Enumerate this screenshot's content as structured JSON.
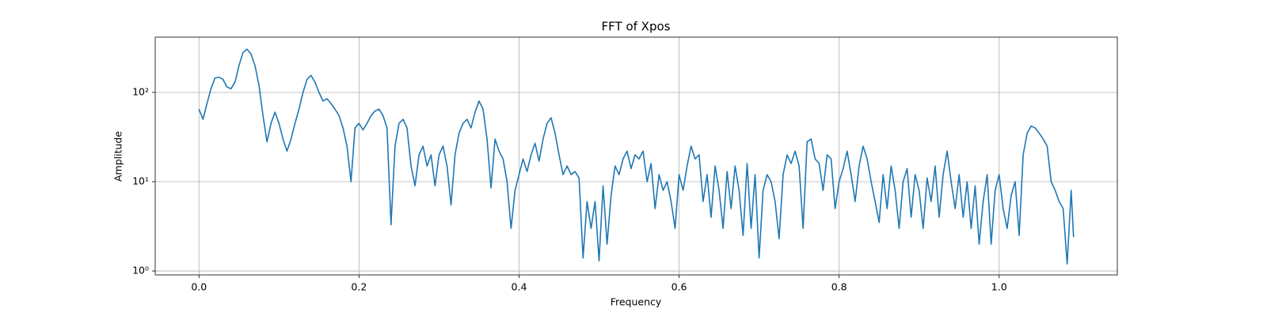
{
  "chart_data": {
    "type": "line",
    "title": "FFT of Xpos",
    "x_label": "Frequency",
    "y_label": "Amplitude",
    "yscale": "log",
    "grid": true,
    "xlim": [
      -0.0547,
      1.1477
    ],
    "ylim": [
      0.904,
      416
    ],
    "xticks": [
      {
        "value": 0,
        "label": "0.0"
      },
      0.2,
      0.4,
      0.6,
      0.8,
      {
        "value": 1,
        "label": "1.0"
      }
    ],
    "yticks": [
      {
        "value": 1,
        "label": "10⁰"
      },
      {
        "value": 10,
        "label": "10¹"
      },
      {
        "value": 100,
        "label": "10²"
      }
    ],
    "x": [
      0,
      0.005,
      0.01,
      0.015,
      0.02,
      0.025,
      0.03,
      0.035,
      0.04,
      0.045,
      0.05,
      0.055,
      0.06,
      0.065,
      0.07,
      0.075,
      0.08,
      0.085,
      0.09,
      0.095,
      0.1,
      0.105,
      0.11,
      0.115,
      0.12,
      0.125,
      0.13,
      0.135,
      0.14,
      0.145,
      0.15,
      0.155,
      0.16,
      0.165,
      0.17,
      0.175,
      0.18,
      0.185,
      0.19,
      0.195,
      0.2,
      0.205,
      0.21,
      0.215,
      0.22,
      0.225,
      0.23,
      0.235,
      0.24,
      0.245,
      0.25,
      0.255,
      0.26,
      0.265,
      0.27,
      0.275,
      0.28,
      0.285,
      0.29,
      0.295,
      0.3,
      0.305,
      0.31,
      0.315,
      0.32,
      0.325,
      0.33,
      0.335,
      0.34,
      0.345,
      0.35,
      0.355,
      0.36,
      0.365,
      0.37,
      0.375,
      0.38,
      0.385,
      0.39,
      0.395,
      0.4,
      0.405,
      0.41,
      0.415,
      0.42,
      0.425,
      0.43,
      0.435,
      0.44,
      0.445,
      0.45,
      0.455,
      0.46,
      0.465,
      0.47,
      0.475,
      0.48,
      0.485,
      0.49,
      0.495,
      0.5,
      0.505,
      0.51,
      0.515,
      0.52,
      0.525,
      0.53,
      0.535,
      0.54,
      0.545,
      0.55,
      0.555,
      0.56,
      0.565,
      0.57,
      0.575,
      0.58,
      0.585,
      0.59,
      0.595,
      0.6,
      0.605,
      0.61,
      0.615,
      0.62,
      0.625,
      0.63,
      0.635,
      0.64,
      0.645,
      0.65,
      0.655,
      0.66,
      0.665,
      0.67,
      0.675,
      0.68,
      0.685,
      0.69,
      0.695,
      0.7,
      0.705,
      0.71,
      0.715,
      0.72,
      0.725,
      0.73,
      0.735,
      0.74,
      0.745,
      0.75,
      0.755,
      0.76,
      0.765,
      0.77,
      0.775,
      0.78,
      0.785,
      0.79,
      0.795,
      0.8,
      0.805,
      0.81,
      0.815,
      0.82,
      0.825,
      0.83,
      0.835,
      0.84,
      0.845,
      0.85,
      0.855,
      0.86,
      0.865,
      0.87,
      0.875,
      0.88,
      0.885,
      0.89,
      0.895,
      0.9,
      0.905,
      0.91,
      0.915,
      0.92,
      0.925,
      0.93,
      0.935,
      0.94,
      0.945,
      0.95,
      0.955,
      0.96,
      0.965,
      0.97,
      0.975,
      0.98,
      0.985,
      0.99,
      0.995,
      1,
      1.005,
      1.01,
      1.015,
      1.02,
      1.025,
      1.03,
      1.035,
      1.04,
      1.045,
      1.05,
      1.055,
      1.06,
      1.065,
      1.07,
      1.075,
      1.08,
      1.085,
      1.09,
      1.093
    ],
    "series": [
      {
        "color": "#1f77b4",
        "values": [
          65,
          50,
          75,
          110,
          145,
          148,
          140,
          115,
          110,
          130,
          200,
          280,
          305,
          270,
          200,
          120,
          55,
          28,
          45,
          60,
          45,
          30,
          22,
          30,
          45,
          65,
          100,
          140,
          155,
          130,
          100,
          80,
          85,
          75,
          65,
          55,
          40,
          25,
          10,
          40,
          45,
          38,
          45,
          55,
          62,
          65,
          55,
          40,
          3.3,
          25,
          45,
          50,
          40,
          15,
          9,
          20,
          25,
          15,
          20,
          9,
          20,
          25,
          15,
          5.5,
          20,
          35,
          45,
          50,
          40,
          60,
          80,
          65,
          30,
          8.5,
          30,
          22,
          18,
          10,
          3,
          8,
          12,
          18,
          13,
          20,
          27,
          17,
          30,
          45,
          52,
          35,
          20,
          12,
          15,
          12,
          13,
          11,
          1.4,
          6,
          3,
          6,
          1.3,
          9,
          2,
          7,
          15,
          12,
          18,
          22,
          14,
          20,
          18,
          22,
          10,
          16,
          5,
          12,
          8,
          10,
          6,
          3,
          12,
          8,
          15,
          25,
          18,
          20,
          6,
          12,
          4,
          15,
          8,
          3,
          13,
          5,
          15,
          8,
          2.5,
          16,
          3,
          12,
          1.4,
          8,
          12,
          10,
          6,
          2.3,
          12,
          20,
          16,
          22,
          15,
          3,
          28,
          30,
          18,
          16,
          8,
          20,
          18,
          5,
          10,
          14,
          22,
          12,
          6,
          15,
          25,
          18,
          10,
          6,
          3.5,
          12,
          5,
          15,
          8,
          3,
          10,
          14,
          4,
          12,
          8,
          3,
          11,
          6,
          15,
          4,
          12,
          22,
          10,
          5,
          12,
          4,
          10,
          3,
          9,
          2,
          6,
          12,
          2,
          8,
          12,
          5,
          3,
          7,
          10,
          2.5,
          20,
          35,
          42,
          40,
          35,
          30,
          25,
          10,
          8,
          6,
          5,
          1.2,
          8,
          2.4
        ]
      }
    ]
  }
}
